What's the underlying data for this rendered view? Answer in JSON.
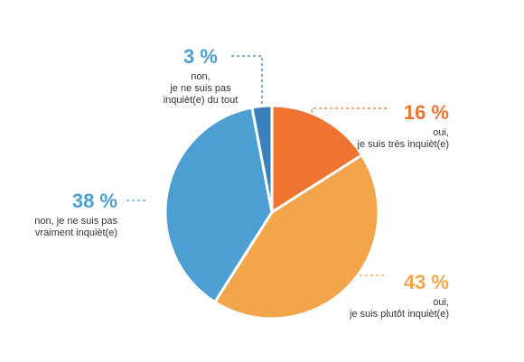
{
  "chart_data": {
    "type": "pie",
    "slices": [
      {
        "value": 16,
        "pct_label": "16 %",
        "label_lines": [
          "oui,",
          "je suis très inquièt(e)"
        ],
        "color": "#ef7331"
      },
      {
        "value": 43,
        "pct_label": "43 %",
        "label_lines": [
          "oui,",
          "je suis plutôt inquièt(e)"
        ],
        "color": "#f2a54a"
      },
      {
        "value": 38,
        "pct_label": "38 %",
        "label_lines": [
          "non, je ne suis pas",
          "vraiment inquièt(e)"
        ],
        "color": "#4d9fd3"
      },
      {
        "value": 3,
        "pct_label": "3 %",
        "label_lines": [
          "non,",
          "je ne suis pas",
          "inquièt(e) du tout"
        ],
        "color": "#3a80ba"
      }
    ],
    "colors": {
      "orange_text": "#ef7331",
      "light_orange_text": "#f2a54a",
      "blue_text": "#4d9fd3"
    }
  }
}
